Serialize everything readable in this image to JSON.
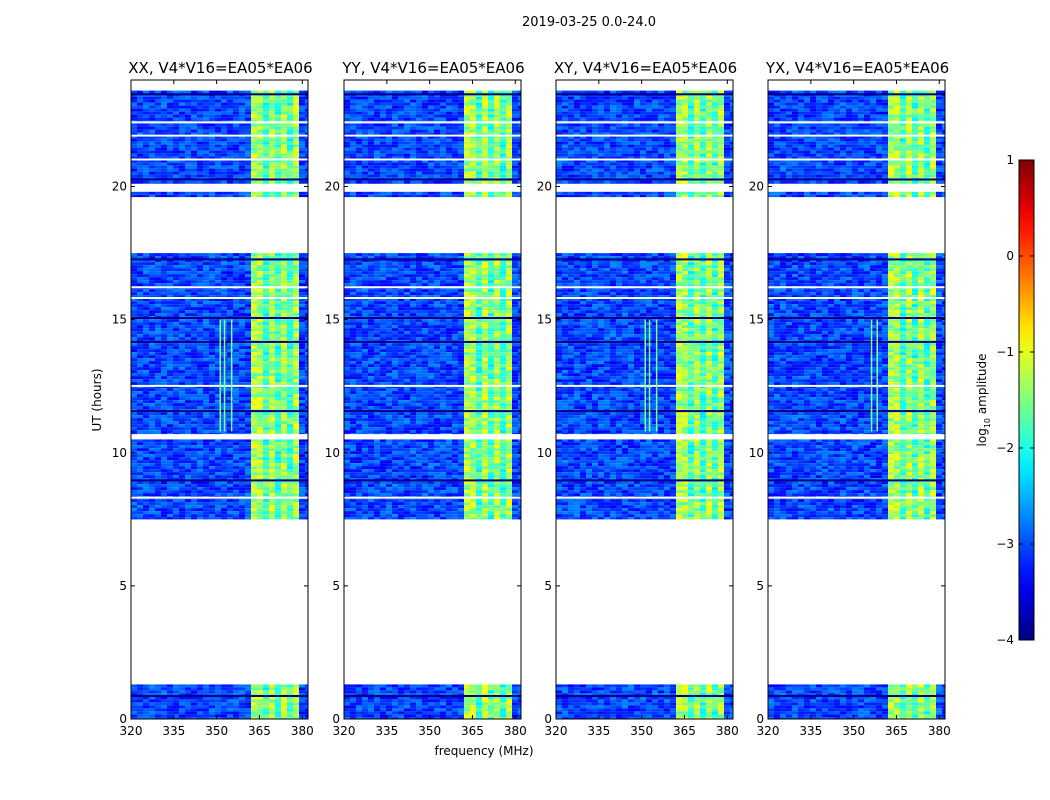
{
  "chart_data": {
    "type": "heatmap",
    "suptitle": "2019-03-25 0.0-24.0",
    "xlabel": "frequency (MHz)",
    "ylabel": "UT (hours)",
    "xlim": [
      320,
      382
    ],
    "ylim": [
      0,
      24
    ],
    "xticks": [
      320,
      335,
      350,
      365,
      380
    ],
    "yticks": [
      0,
      5,
      10,
      15,
      20
    ],
    "colorbar": {
      "label": "log10 amplitude",
      "label_base": "log",
      "label_sub": "10",
      "label_rest": " amplitude",
      "range": [
        -4,
        1
      ],
      "ticks": [
        1,
        0,
        -1,
        -2,
        -3,
        -4
      ],
      "colormap": "jet"
    },
    "data_bands_hours": [
      [
        0,
        1.3
      ],
      [
        7.5,
        17.5
      ],
      [
        19.6,
        19.8
      ],
      [
        20.1,
        23.6
      ]
    ],
    "panels": [
      {
        "title": "XX, V4*V16=EA05*EA06",
        "rfi_band_mhz": [
          363,
          378
        ],
        "extra_lines_mhz": [
          351,
          352.5,
          355
        ]
      },
      {
        "title": "YY, V4*V16=EA05*EA06",
        "rfi_band_mhz": [
          363,
          378
        ],
        "extra_lines_mhz": []
      },
      {
        "title": "XY, V4*V16=EA05*EA06",
        "rfi_band_mhz": [
          363,
          378
        ],
        "extra_lines_mhz": [
          351,
          352.5,
          355
        ]
      },
      {
        "title": "YX, V4*V16=EA05*EA06",
        "rfi_band_mhz": [
          363,
          378
        ],
        "extra_lines_mhz": [
          356,
          358
        ]
      }
    ]
  }
}
